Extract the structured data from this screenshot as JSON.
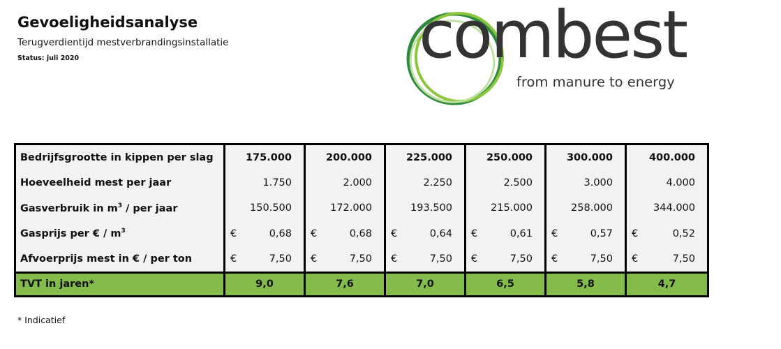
{
  "header": {
    "title": "Gevoeligheidsanalyse",
    "subtitle": "Terugverdientijd mestverbrandingsinstallatie",
    "status": "Status: juli 2020"
  },
  "logo": {
    "word": "combest",
    "tagline": "from manure to energy",
    "ring_colors": [
      "#2f8a3e",
      "#8cc63f",
      "#bfe0a0"
    ]
  },
  "table": {
    "head_label": "Bedrijfsgrootte in kippen per slag",
    "sizes": [
      "175.000",
      "200.000",
      "225.000",
      "250.000",
      "300.000",
      "400.000"
    ],
    "rows": [
      {
        "label": "Hoeveelheid mest per jaar",
        "values": [
          "1.750",
          "2.000",
          "2.250",
          "2.500",
          "3.000",
          "4.000"
        ]
      },
      {
        "label_pre": "Gasverbruik in m",
        "label_sup": "3",
        "label_post": " / per jaar",
        "values": [
          "150.500",
          "172.000",
          "193.500",
          "215.000",
          "258.000",
          "344.000"
        ]
      },
      {
        "label_pre": "Gasprijs per € / m",
        "label_sup": "3",
        "currency": "€",
        "values": [
          "0,68",
          "0,68",
          "0,64",
          "0,61",
          "0,57",
          "0,52"
        ]
      },
      {
        "label": "Afvoerprijs mest in € / per ton",
        "currency": "€",
        "values": [
          "7,50",
          "7,50",
          "7,50",
          "7,50",
          "7,50",
          "7,50"
        ]
      }
    ],
    "tvt_label": "TVT in jaren*",
    "tvt_values": [
      "9,0",
      "7,6",
      "7,0",
      "6,5",
      "5,8",
      "4,7"
    ],
    "tvt_color": "#84bc4c"
  },
  "footnote": "* Indicatief"
}
